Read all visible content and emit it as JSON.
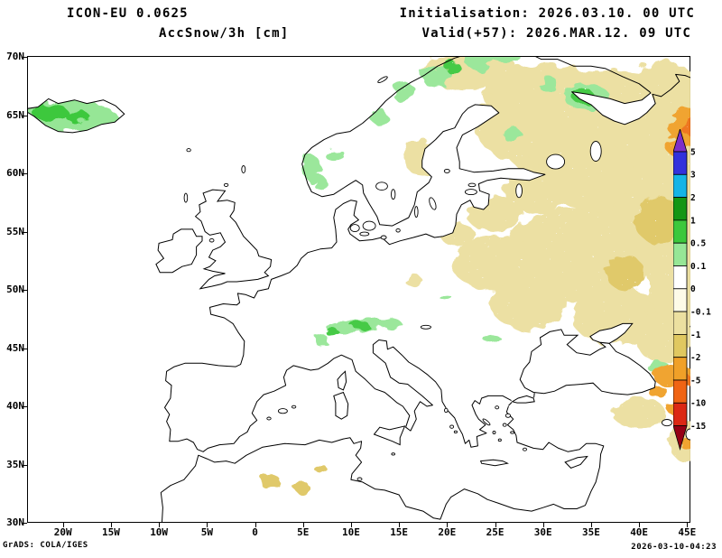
{
  "header": {
    "model_line": "ICON-EU 0.0625",
    "variable_line": "AccSnow/3h [cm]",
    "init_line": "Initialisation: 2026.03.10. 00 UTC",
    "valid_line": "Valid(+57): 2026.MAR.12. 09 UTC"
  },
  "footer": {
    "grads_credit": "GrADS: COLA/IGES",
    "timestamp": "2026-03-10-04:23"
  },
  "axes": {
    "lat_labels": [
      "70N",
      "65N",
      "60N",
      "55N",
      "50N",
      "45N",
      "40N",
      "35N",
      "30N"
    ],
    "lat_values": [
      70,
      65,
      60,
      55,
      50,
      45,
      40,
      35,
      30
    ],
    "lon_labels": [
      "20W",
      "15W",
      "10W",
      "5W",
      "0",
      "5E",
      "10E",
      "15E",
      "20E",
      "25E",
      "30E",
      "35E",
      "40E",
      "45E"
    ],
    "lon_values": [
      -20,
      -15,
      -10,
      -5,
      0,
      5,
      10,
      15,
      20,
      25,
      30,
      35,
      40,
      45
    ]
  },
  "legend": {
    "unit": "cm",
    "labels": [
      "5",
      "3",
      "2",
      "1",
      "0.5",
      "0.1",
      "0",
      "-0.1",
      "-1",
      "-2",
      "-5",
      "-10",
      "-15"
    ],
    "segment_colors_top_to_bottom": [
      "#7d2fc9",
      "#3232dc",
      "#14b4e6",
      "#149614",
      "#3cc83c",
      "#96e696",
      "#ffffff",
      "#fdfbe8",
      "#ece0a0",
      "#e0c860",
      "#f0a028",
      "#f06414",
      "#dc2814",
      "#960014"
    ]
  },
  "chart_data": {
    "type": "heatmap",
    "subtype": "filled-contour-weather-map",
    "model": "ICON-EU 0.0625",
    "variable": "AccSnow/3h",
    "unit": "cm",
    "init_time": "2026.03.10. 00 UTC",
    "valid_time": "2026.MAR.12. 09 UTC",
    "lead": "+57",
    "region": "Europe",
    "lon_range": [
      -23.6,
      45.4
    ],
    "lat_range": [
      30,
      70
    ],
    "levels": [
      5,
      3,
      2,
      1,
      0.5,
      0.1,
      0,
      -0.1,
      -1,
      -2,
      -5,
      -10,
      -15
    ],
    "palette": {
      "khaki": "#ecdf9f",
      "yellow": "#dfc763",
      "ltgreen": "#96e696",
      "green": "#3cc83c",
      "orange": "#f0a028",
      "dkorange": "#ee6f18"
    },
    "shading": [
      {
        "color": "khaki",
        "lon": 37,
        "lat": 63.5,
        "rx": 11.5,
        "ry": 5.5
      },
      {
        "color": "khaki",
        "lon": 30.5,
        "lat": 66.2,
        "rx": 6.5,
        "ry": 3.2
      },
      {
        "color": "khaki",
        "lon": 41,
        "lat": 57,
        "rx": 7.5,
        "ry": 6
      },
      {
        "color": "khaki",
        "lon": 33,
        "lat": 53,
        "rx": 7,
        "ry": 4
      },
      {
        "color": "khaki",
        "lon": 25,
        "lat": 52.3,
        "rx": 4.5,
        "ry": 2.4
      },
      {
        "color": "khaki",
        "lon": 28.5,
        "lat": 48.8,
        "rx": 4,
        "ry": 2.2
      },
      {
        "color": "khaki",
        "lon": 37.5,
        "lat": 47.8,
        "rx": 4.5,
        "ry": 2.6
      },
      {
        "color": "khaki",
        "lon": 44,
        "lat": 50.5,
        "rx": 3,
        "ry": 4
      },
      {
        "color": "khaki",
        "lon": 22.5,
        "lat": 68.8,
        "rx": 5,
        "ry": 1.7
      },
      {
        "color": "khaki",
        "lon": 27.5,
        "lat": 64.2,
        "rx": 4.5,
        "ry": 3.2
      },
      {
        "color": "khaki",
        "lon": 42.5,
        "lat": 67.8,
        "rx": 3.5,
        "ry": 1.7
      },
      {
        "color": "khaki",
        "lon": 17.5,
        "lat": 61.3,
        "rx": 2,
        "ry": 1.5
      },
      {
        "color": "khaki",
        "lon": 29.5,
        "lat": 58.6,
        "rx": 3.5,
        "ry": 2
      },
      {
        "color": "khaki",
        "lon": 35,
        "lat": 59.8,
        "rx": 4.5,
        "ry": 3
      },
      {
        "color": "khaki",
        "lon": 21,
        "lat": 54.8,
        "rx": 1.8,
        "ry": 1
      },
      {
        "color": "khaki",
        "lon": 16.5,
        "lat": 50.8,
        "rx": 0.9,
        "ry": 0.5
      },
      {
        "color": "khaki",
        "lon": 40,
        "lat": 39.4,
        "rx": 2.8,
        "ry": 1.3
      },
      {
        "color": "khaki",
        "lon": 42.5,
        "lat": 46,
        "rx": 3,
        "ry": 2.2
      },
      {
        "color": "khaki",
        "lon": 44.8,
        "lat": 37,
        "rx": 1.6,
        "ry": 1.8
      },
      {
        "color": "khaki",
        "lon": 45,
        "lat": 55,
        "rx": 1.5,
        "ry": 2.5
      },
      {
        "color": "khaki",
        "lon": 25,
        "lat": 56.5,
        "rx": 3,
        "ry": 1.5
      },
      {
        "color": "khaki",
        "lon": 31.5,
        "lat": 61.8,
        "rx": 3,
        "ry": 1.5
      },
      {
        "color": "yellow",
        "lon": 1.5,
        "lat": 33.6,
        "rx": 1.1,
        "ry": 0.6
      },
      {
        "color": "yellow",
        "lon": 4.8,
        "lat": 33.1,
        "rx": 0.8,
        "ry": 0.5
      },
      {
        "color": "yellow",
        "lon": 6.9,
        "lat": 34.6,
        "rx": 0.6,
        "ry": 0.4
      },
      {
        "color": "yellow",
        "lon": 42,
        "lat": 56,
        "rx": 2.5,
        "ry": 2
      },
      {
        "color": "yellow",
        "lon": 38.5,
        "lat": 51.5,
        "rx": 2,
        "ry": 1.5
      },
      {
        "color": "ltgreen",
        "lon": -19.5,
        "lat": 65.0,
        "rx": 4.3,
        "ry": 1.5,
        "clip": "iceland"
      },
      {
        "color": "ltgreen",
        "lon": -16.2,
        "lat": 64.7,
        "rx": 2.0,
        "ry": 0.9,
        "clip": "iceland"
      },
      {
        "color": "green",
        "lon": -21.3,
        "lat": 65.2,
        "rx": 1.8,
        "ry": 0.8,
        "clip": "iceland"
      },
      {
        "color": "green",
        "lon": -18.5,
        "lat": 64.9,
        "rx": 1.2,
        "ry": 0.6,
        "clip": "iceland"
      },
      {
        "color": "ltgreen",
        "lon": 5.9,
        "lat": 60.4,
        "rx": 0.9,
        "ry": 1.2
      },
      {
        "color": "ltgreen",
        "lon": 6.9,
        "lat": 59.1,
        "rx": 0.6,
        "ry": 0.7
      },
      {
        "color": "ltgreen",
        "lon": 8.3,
        "lat": 61.6,
        "rx": 1.0,
        "ry": 0.6
      },
      {
        "color": "ltgreen",
        "lon": 13.0,
        "lat": 64.8,
        "rx": 0.9,
        "ry": 0.7
      },
      {
        "color": "ltgreen",
        "lon": 15.6,
        "lat": 66.9,
        "rx": 1.3,
        "ry": 0.8
      },
      {
        "color": "ltgreen",
        "lon": 18.9,
        "lat": 68.3,
        "rx": 1.6,
        "ry": 0.9
      },
      {
        "color": "ltgreen",
        "lon": 23.4,
        "lat": 69.6,
        "rx": 1.5,
        "ry": 0.7
      },
      {
        "color": "ltgreen",
        "lon": 26.0,
        "lat": 70.1,
        "rx": 1.5,
        "ry": 0.6
      },
      {
        "color": "green",
        "lon": 20.6,
        "lat": 69.1,
        "rx": 0.8,
        "ry": 0.5
      },
      {
        "color": "ltgreen",
        "lon": 34.5,
        "lat": 66.6,
        "rx": 2.4,
        "ry": 1.1
      },
      {
        "color": "green",
        "lon": 34.2,
        "lat": 66.6,
        "rx": 1.2,
        "ry": 0.6
      },
      {
        "color": "ltgreen",
        "lon": 30.6,
        "lat": 67.6,
        "rx": 1.0,
        "ry": 0.7
      },
      {
        "color": "ltgreen",
        "lon": 26.8,
        "lat": 63.3,
        "rx": 1.0,
        "ry": 0.6
      },
      {
        "color": "ltgreen",
        "lon": 9.8,
        "lat": 46.8,
        "rx": 2.4,
        "ry": 0.55
      },
      {
        "color": "ltgreen",
        "lon": 13.1,
        "lat": 47.1,
        "rx": 2.2,
        "ry": 0.5
      },
      {
        "color": "ltgreen",
        "lon": 6.9,
        "lat": 45.7,
        "rx": 0.6,
        "ry": 0.6
      },
      {
        "color": "green",
        "lon": 11.0,
        "lat": 46.9,
        "rx": 1.0,
        "ry": 0.3
      },
      {
        "color": "green",
        "lon": 8.0,
        "lat": 46.4,
        "rx": 0.7,
        "ry": 0.35
      },
      {
        "color": "ltgreen",
        "lon": 24.8,
        "lat": 45.7,
        "rx": 0.9,
        "ry": 0.4
      },
      {
        "color": "ltgreen",
        "lon": 19.9,
        "lat": 49.3,
        "rx": 0.6,
        "ry": 0.3
      },
      {
        "color": "ltgreen",
        "lon": 42.0,
        "lat": 43.4,
        "rx": 1.2,
        "ry": 0.5
      },
      {
        "color": "orange",
        "lon": 45.0,
        "lat": 64.0,
        "rx": 1.7,
        "ry": 1.6
      },
      {
        "color": "dkorange",
        "lon": 45.3,
        "lat": 64.0,
        "rx": 0.9,
        "ry": 0.8
      },
      {
        "color": "orange",
        "lon": 43.9,
        "lat": 62.3,
        "rx": 1.0,
        "ry": 0.9
      },
      {
        "color": "orange",
        "lon": 43.5,
        "lat": 42.7,
        "rx": 2.2,
        "ry": 0.9
      },
      {
        "color": "dkorange",
        "lon": 44.6,
        "lat": 42.2,
        "rx": 1.0,
        "ry": 0.5
      },
      {
        "color": "orange",
        "lon": 41.9,
        "lat": 41.3,
        "rx": 1.0,
        "ry": 0.5
      },
      {
        "color": "orange",
        "lon": 43.8,
        "lat": 39.8,
        "rx": 0.9,
        "ry": 0.6
      },
      {
        "color": "orange",
        "lon": 45.2,
        "lat": 36.8,
        "rx": 0.8,
        "ry": 0.7
      }
    ]
  }
}
